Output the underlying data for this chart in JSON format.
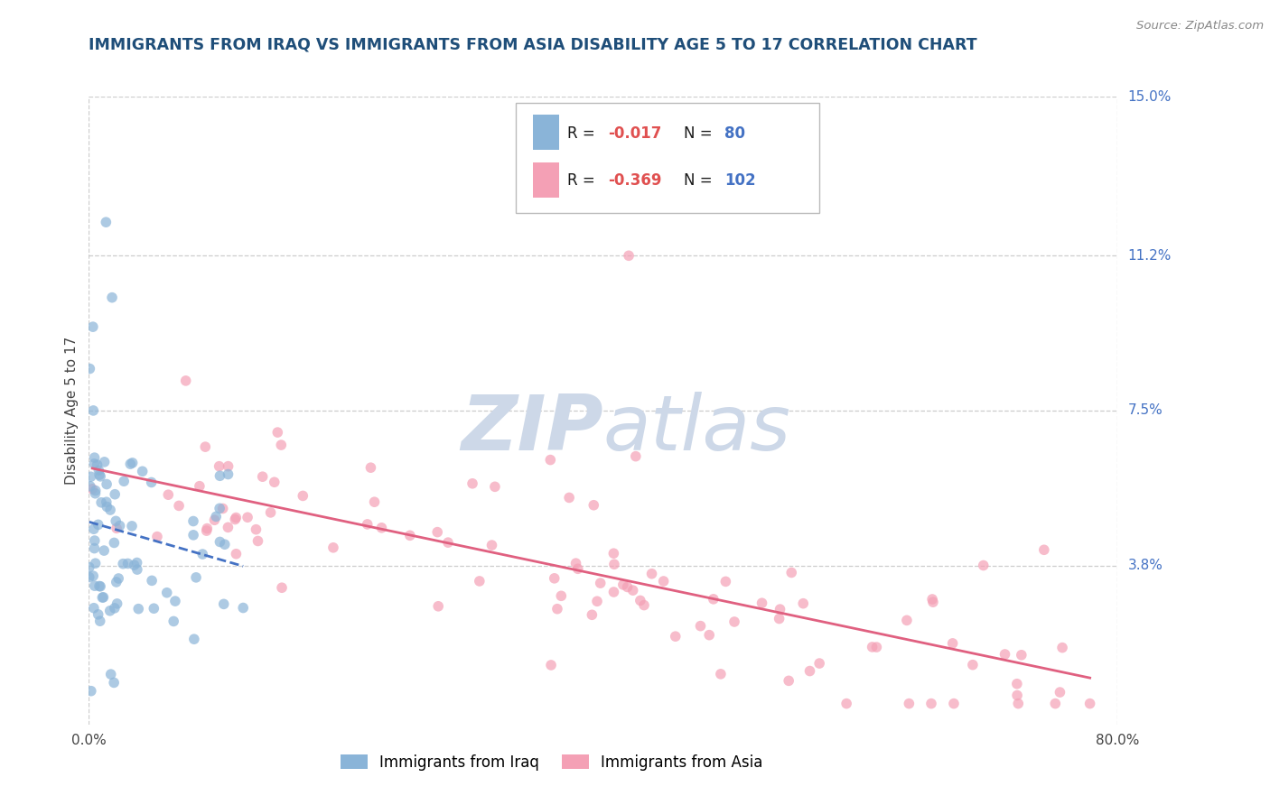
{
  "title": "IMMIGRANTS FROM IRAQ VS IMMIGRANTS FROM ASIA DISABILITY AGE 5 TO 17 CORRELATION CHART",
  "source": "Source: ZipAtlas.com",
  "ylabel": "Disability Age 5 to 17",
  "xlim": [
    0.0,
    0.8
  ],
  "ylim": [
    0.0,
    0.15
  ],
  "xtick_labels": [
    "0.0%",
    "80.0%"
  ],
  "ytick_labels": [
    "15.0%",
    "11.2%",
    "7.5%",
    "3.8%"
  ],
  "ytick_values": [
    0.15,
    0.112,
    0.075,
    0.038
  ],
  "r_iraq": -0.017,
  "n_iraq": 80,
  "r_asia": -0.369,
  "n_asia": 102,
  "color_iraq": "#8ab4d8",
  "color_asia": "#f4a0b5",
  "line_color_iraq": "#4472c4",
  "line_color_asia": "#e06080",
  "background_color": "#ffffff",
  "grid_color": "#c8c8c8",
  "watermark_color": "#cdd8e8",
  "title_color": "#1f4e79",
  "right_label_color": "#4472c4",
  "r_value_color": "#e05050",
  "n_value_color": "#4472c4",
  "legend_text_color": "#1a1a1a"
}
